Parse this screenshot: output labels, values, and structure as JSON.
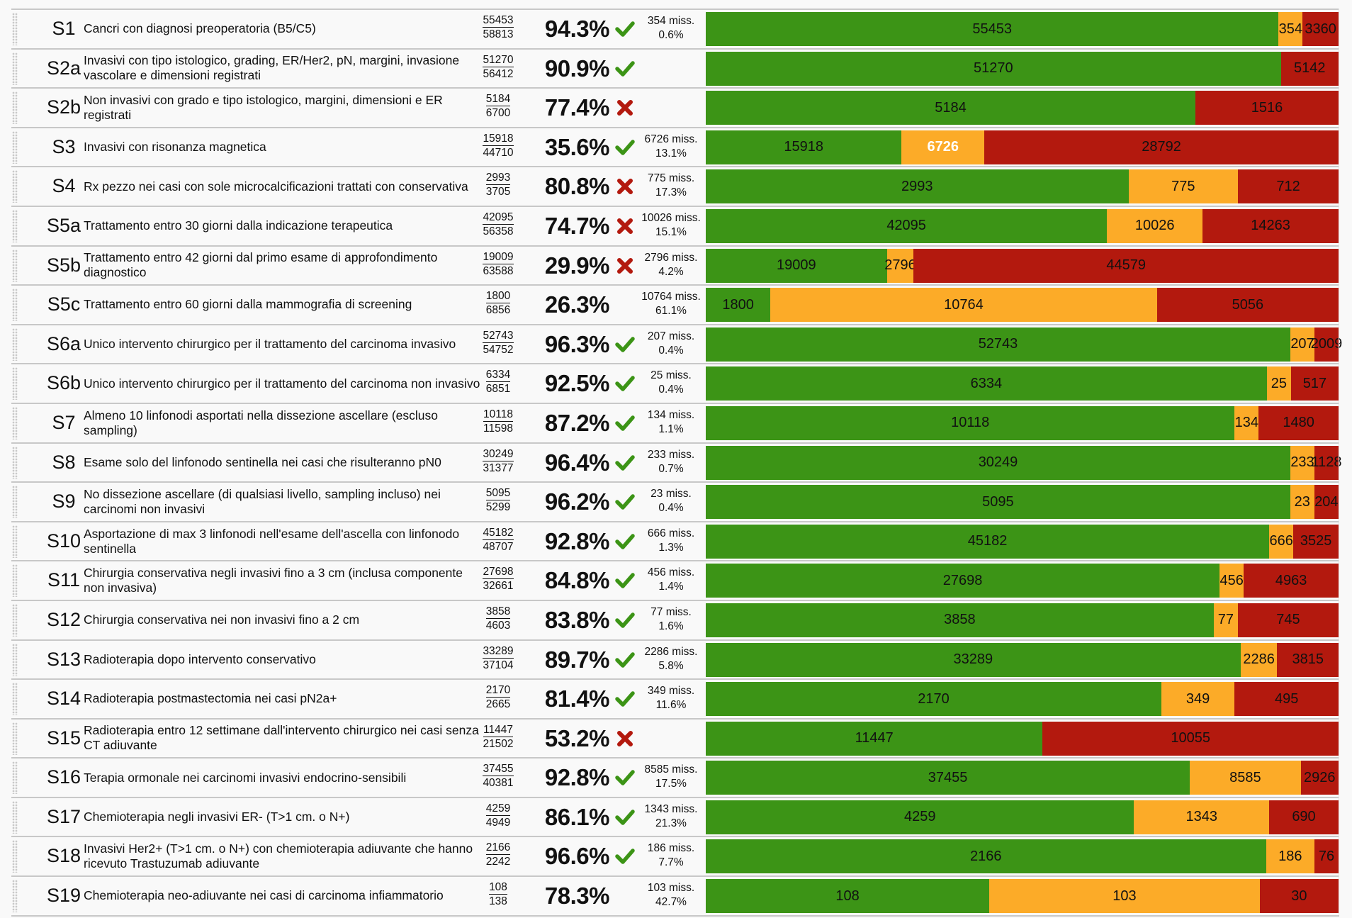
{
  "colors": {
    "green": "#3c9416",
    "orange": "#fcab28",
    "red": "#b3190e",
    "check": "#3c9416",
    "cross": "#b3190e"
  },
  "miss_suffix": "miss.",
  "chart_data": {
    "type": "table",
    "title": "",
    "columns": [
      "id",
      "description",
      "numerator",
      "denominator",
      "percent",
      "status",
      "missing",
      "missing_percent",
      "bar_green",
      "bar_orange",
      "bar_red"
    ],
    "series": [
      {
        "name": "green",
        "color": "#3c9416"
      },
      {
        "name": "orange",
        "color": "#fcab28"
      },
      {
        "name": "red",
        "color": "#b3190e"
      }
    ],
    "rows": [
      {
        "id": "S1",
        "description": "Cancri con diagnosi preoperatoria (B5/C5)",
        "num": "55453",
        "den": "58813",
        "pct": "94.3%",
        "status": "check",
        "miss": "354",
        "miss_pct": "0.6%",
        "green": 55453,
        "orange": 354,
        "red": 3360
      },
      {
        "id": "S2a",
        "description": "Invasivi con tipo istologico, grading, ER/Her2, pN, margini, invasione vascolare e dimensioni registrati",
        "num": "51270",
        "den": "56412",
        "pct": "90.9%",
        "status": "check",
        "miss": null,
        "miss_pct": null,
        "green": 51270,
        "orange": 0,
        "red": 5142
      },
      {
        "id": "S2b",
        "description": "Non invasivi con grado e tipo istologico, margini, dimensioni e ER registrati",
        "num": "5184",
        "den": "6700",
        "pct": "77.4%",
        "status": "cross",
        "miss": null,
        "miss_pct": null,
        "green": 5184,
        "orange": 0,
        "red": 1516
      },
      {
        "id": "S3",
        "description": "Invasivi con risonanza magnetica",
        "num": "15918",
        "den": "44710",
        "pct": "35.6%",
        "status": "check",
        "miss": "6726",
        "miss_pct": "13.1%",
        "green": 15918,
        "orange": 6726,
        "red": 28792,
        "highlight": "orange"
      },
      {
        "id": "S4",
        "description": "Rx pezzo nei casi con sole microcalcificazioni trattati con conservativa",
        "num": "2993",
        "den": "3705",
        "pct": "80.8%",
        "status": "cross",
        "miss": "775",
        "miss_pct": "17.3%",
        "green": 2993,
        "orange": 775,
        "red": 712
      },
      {
        "id": "S5a",
        "description": "Trattamento entro 30 giorni dalla indicazione terapeutica",
        "num": "42095",
        "den": "56358",
        "pct": "74.7%",
        "status": "cross",
        "miss": "10026",
        "miss_pct": "15.1%",
        "green": 42095,
        "orange": 10026,
        "red": 14263
      },
      {
        "id": "S5b",
        "description": "Trattamento entro 42 giorni dal primo esame di approfondimento diagnostico",
        "num": "19009",
        "den": "63588",
        "pct": "29.9%",
        "status": "cross",
        "miss": "2796",
        "miss_pct": "4.2%",
        "green": 19009,
        "orange": 2796,
        "red": 44579
      },
      {
        "id": "S5c",
        "description": "Trattamento entro 60 giorni dalla mammografia di screening",
        "num": "1800",
        "den": "6856",
        "pct": "26.3%",
        "status": null,
        "miss": "10764",
        "miss_pct": "61.1%",
        "green": 1800,
        "orange": 10764,
        "red": 5056
      },
      {
        "id": "S6a",
        "description": "Unico intervento chirurgico per il trattamento del carcinoma invasivo",
        "num": "52743",
        "den": "54752",
        "pct": "96.3%",
        "status": "check",
        "miss": "207",
        "miss_pct": "0.4%",
        "green": 52743,
        "orange": 207,
        "red": 2009
      },
      {
        "id": "S6b",
        "description": "Unico intervento chirurgico per il trattamento del carcinoma non invasivo",
        "num": "6334",
        "den": "6851",
        "pct": "92.5%",
        "status": "check",
        "miss": "25",
        "miss_pct": "0.4%",
        "green": 6334,
        "orange": 25,
        "red": 517
      },
      {
        "id": "S7",
        "description": "Almeno 10 linfonodi asportati nella dissezione ascellare (escluso sampling)",
        "num": "10118",
        "den": "11598",
        "pct": "87.2%",
        "status": "check",
        "miss": "134",
        "miss_pct": "1.1%",
        "green": 10118,
        "orange": 134,
        "red": 1480
      },
      {
        "id": "S8",
        "description": "Esame solo del linfonodo sentinella nei casi che risulteranno pN0",
        "num": "30249",
        "den": "31377",
        "pct": "96.4%",
        "status": "check",
        "miss": "233",
        "miss_pct": "0.7%",
        "green": 30249,
        "orange": 233,
        "red": 1128
      },
      {
        "id": "S9",
        "description": "No dissezione ascellare (di qualsiasi livello, sampling incluso) nei carcinomi non invasivi",
        "num": "5095",
        "den": "5299",
        "pct": "96.2%",
        "status": "check",
        "miss": "23",
        "miss_pct": "0.4%",
        "green": 5095,
        "orange": 23,
        "red": 204
      },
      {
        "id": "S10",
        "description": "Asportazione di max 3 linfonodi nell'esame dell'ascella con linfonodo sentinella",
        "num": "45182",
        "den": "48707",
        "pct": "92.8%",
        "status": "check",
        "miss": "666",
        "miss_pct": "1.3%",
        "green": 45182,
        "orange": 666,
        "red": 3525
      },
      {
        "id": "S11",
        "description": "Chirurgia conservativa negli invasivi fino a 3 cm (inclusa componente non invasiva)",
        "num": "27698",
        "den": "32661",
        "pct": "84.8%",
        "status": "check",
        "miss": "456",
        "miss_pct": "1.4%",
        "green": 27698,
        "orange": 456,
        "red": 4963
      },
      {
        "id": "S12",
        "description": "Chirurgia conservativa nei non invasivi fino a 2 cm",
        "num": "3858",
        "den": "4603",
        "pct": "83.8%",
        "status": "check",
        "miss": "77",
        "miss_pct": "1.6%",
        "green": 3858,
        "orange": 77,
        "red": 745
      },
      {
        "id": "S13",
        "description": "Radioterapia dopo intervento conservativo",
        "num": "33289",
        "den": "37104",
        "pct": "89.7%",
        "status": "check",
        "miss": "2286",
        "miss_pct": "5.8%",
        "green": 33289,
        "orange": 2286,
        "red": 3815
      },
      {
        "id": "S14",
        "description": "Radioterapia postmastectomia nei casi pN2a+",
        "num": "2170",
        "den": "2665",
        "pct": "81.4%",
        "status": "check",
        "miss": "349",
        "miss_pct": "11.6%",
        "green": 2170,
        "orange": 349,
        "red": 495
      },
      {
        "id": "S15",
        "description": "Radioterapia entro 12 settimane dall'intervento chirurgico nei casi senza CT adiuvante",
        "num": "11447",
        "den": "21502",
        "pct": "53.2%",
        "status": "cross",
        "miss": null,
        "miss_pct": null,
        "green": 11447,
        "orange": 0,
        "red": 10055
      },
      {
        "id": "S16",
        "description": "Terapia ormonale nei carcinomi invasivi endocrino-sensibili",
        "num": "37455",
        "den": "40381",
        "pct": "92.8%",
        "status": "check",
        "miss": "8585",
        "miss_pct": "17.5%",
        "green": 37455,
        "orange": 8585,
        "red": 2926
      },
      {
        "id": "S17",
        "description": "Chemioterapia negli invasivi ER- (T>1 cm. o N+)",
        "num": "4259",
        "den": "4949",
        "pct": "86.1%",
        "status": "check",
        "miss": "1343",
        "miss_pct": "21.3%",
        "green": 4259,
        "orange": 1343,
        "red": 690
      },
      {
        "id": "S18",
        "description": "Invasivi Her2+ (T>1 cm. o N+) con chemioterapia adiuvante che hanno ricevuto Trastuzumab adiuvante",
        "num": "2166",
        "den": "2242",
        "pct": "96.6%",
        "status": "check",
        "miss": "186",
        "miss_pct": "7.7%",
        "green": 2166,
        "orange": 186,
        "red": 76
      },
      {
        "id": "S19",
        "description": "Chemioterapia neo-adiuvante nei casi di carcinoma infiammatorio",
        "num": "108",
        "den": "138",
        "pct": "78.3%",
        "status": null,
        "miss": "103",
        "miss_pct": "42.7%",
        "green": 108,
        "orange": 103,
        "red": 30
      }
    ]
  }
}
